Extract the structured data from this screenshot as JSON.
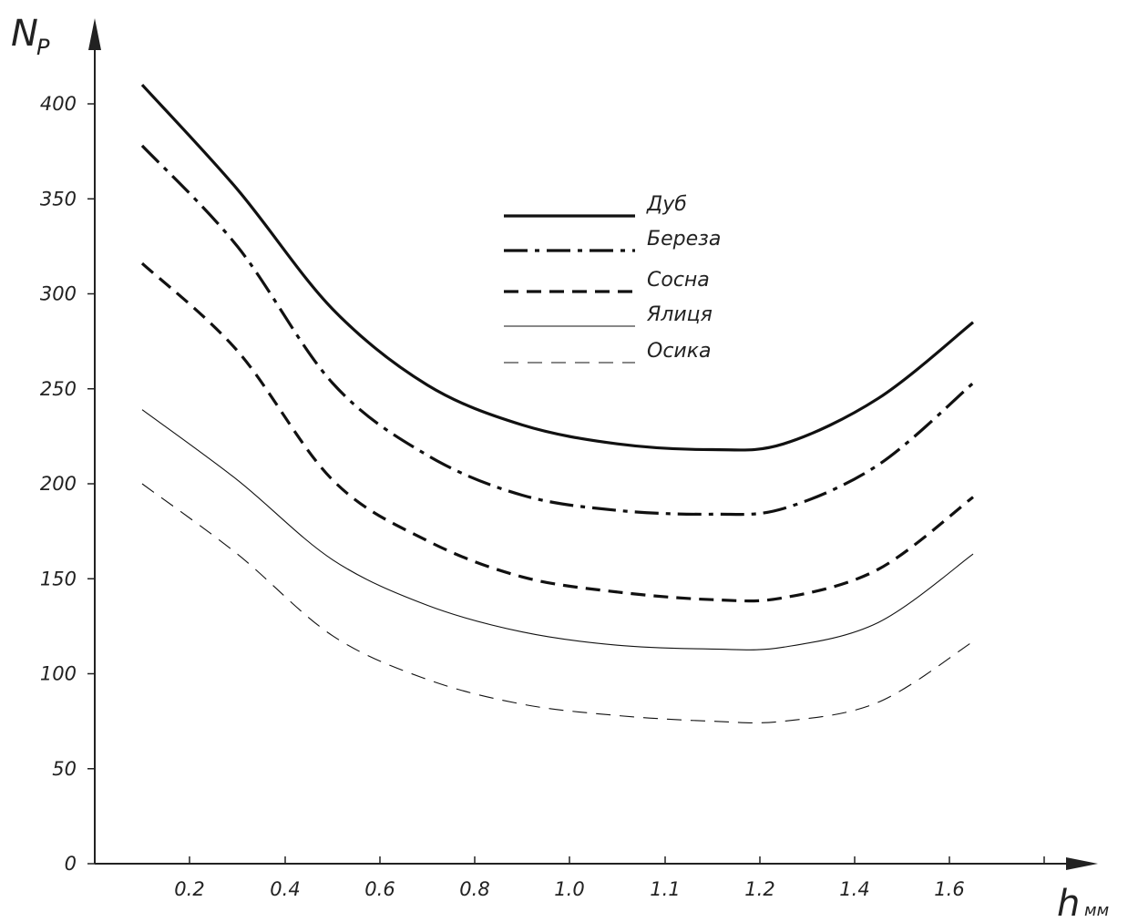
{
  "chart_data": {
    "type": "line",
    "y_axis_title": {
      "main": "N",
      "sub": "P"
    },
    "x_axis_title": {
      "main": "h",
      "unit": "мм"
    },
    "x_tick_labels": [
      "0.2",
      "0.4",
      "0.6",
      "0.8",
      "1.0",
      "1.1",
      "1.2",
      "1.4",
      "1.6"
    ],
    "y_ticks": [
      0,
      50,
      100,
      150,
      200,
      250,
      300,
      350,
      400
    ],
    "ylim": [
      0,
      400
    ],
    "grid": false,
    "legend_position": "top-center",
    "x": [
      0.1,
      0.3,
      0.5,
      0.7,
      0.9,
      1.05,
      1.15,
      1.25,
      1.45,
      1.65
    ],
    "series": [
      {
        "name": "Дуб",
        "style": "solid-thick",
        "values": [
          410,
          355,
          292,
          252,
          231,
          221,
          218,
          221,
          245,
          285
        ]
      },
      {
        "name": "Береза",
        "style": "dashdot-thick",
        "values": [
          378,
          325,
          253,
          215,
          194,
          186,
          184,
          187,
          210,
          253
        ]
      },
      {
        "name": "Сосна",
        "style": "dashed-thick",
        "values": [
          316,
          270,
          202,
          170,
          151,
          143,
          139,
          140,
          155,
          193
        ]
      },
      {
        "name": "Ялиця",
        "style": "solid-thin",
        "values": [
          239,
          202,
          160,
          136,
          122,
          115,
          113,
          114,
          127,
          163
        ]
      },
      {
        "name": "Осика",
        "style": "dashed-thin",
        "values": [
          200,
          163,
          120,
          97,
          84,
          78,
          75,
          75,
          85,
          117
        ]
      }
    ]
  }
}
